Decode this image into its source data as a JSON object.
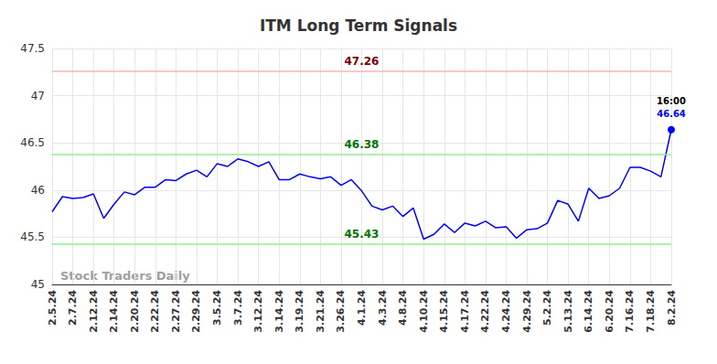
{
  "chart_data": {
    "type": "line",
    "title": "ITM Long Term Signals",
    "watermark": "Stock Traders Daily",
    "annotations": [
      "16:00"
    ],
    "color": "#0000ff",
    "grid": true,
    "ylim": [
      45,
      47.5
    ],
    "yticks": [
      45,
      45.5,
      46,
      46.5,
      47,
      47.5
    ],
    "reference_lines": [
      {
        "value": 47.26,
        "color": "#ffb3b3"
      },
      {
        "value": 46.38,
        "color": "#90ee90"
      },
      {
        "value": 45.43,
        "color": "#90ee90"
      }
    ],
    "categories": [
      "2.5.24",
      null,
      "2.7.24",
      null,
      "2.12.24",
      null,
      "2.14.24",
      null,
      "2.20.24",
      null,
      "2.22.24",
      null,
      "2.27.24",
      null,
      "2.29.24",
      null,
      "3.5.24",
      null,
      "3.7.24",
      null,
      "3.12.24",
      null,
      "3.14.24",
      null,
      "3.19.24",
      null,
      "3.21.24",
      null,
      "3.26.24",
      null,
      "4.1.24",
      null,
      "4.3.24",
      null,
      "4.8.24",
      null,
      "4.10.24",
      null,
      "4.15.24",
      null,
      "4.17.24",
      null,
      "4.22.24",
      null,
      "4.24.24",
      null,
      "4.29.24",
      null,
      "5.2.24",
      null,
      "5.13.24",
      null,
      "6.14.24",
      null,
      "6.20.24",
      null,
      "7.16.24",
      null,
      "7.18.24",
      null,
      "8.2.24"
    ],
    "values": [
      45.77,
      45.93,
      45.91,
      45.92,
      45.96,
      45.7,
      45.85,
      45.98,
      45.95,
      46.03,
      46.03,
      46.11,
      46.1,
      46.17,
      46.21,
      46.14,
      46.28,
      46.25,
      46.33,
      46.3,
      46.25,
      46.3,
      46.11,
      46.11,
      46.17,
      46.14,
      46.12,
      46.14,
      46.05,
      46.11,
      45.99,
      45.83,
      45.79,
      45.83,
      45.72,
      45.81,
      45.48,
      45.53,
      45.64,
      45.55,
      45.65,
      45.62,
      45.67,
      45.6,
      45.61,
      45.49,
      45.58,
      45.59,
      45.65,
      45.89,
      45.85,
      45.67,
      46.02,
      45.91,
      45.94,
      46.02,
      46.24,
      46.24,
      46.2,
      46.14,
      46.64
    ]
  }
}
